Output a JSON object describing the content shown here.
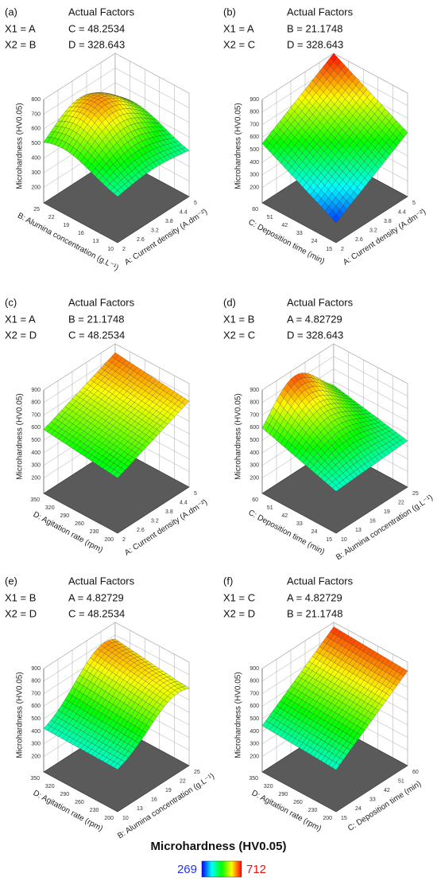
{
  "panels": [
    {
      "label": "(a)",
      "heading": "Actual Factors",
      "x1": "X1 = A",
      "x2": "X2 = B",
      "f1": "C = 48.2534",
      "f2": "D = 328.643",
      "z_label": "Microhardness (HV0.05)",
      "x_label": "A: Current density (A.dm⁻²)",
      "y_label": "B: Alumina concentration (g.L⁻¹)",
      "z_ticks": [
        200,
        300,
        400,
        500,
        600,
        700,
        800
      ],
      "x_ticks": [
        2,
        2.6,
        3.2,
        3.8,
        4.4,
        5
      ],
      "y_ticks": [
        10,
        13,
        16,
        19,
        22,
        25
      ]
    },
    {
      "label": "(b)",
      "heading": "Actual Factors",
      "x1": "X1 = A",
      "x2": "X2 = C",
      "f1": "B = 21.1748",
      "f2": "D = 328.643",
      "z_label": "Microhardness (HV0.05)",
      "x_label": "A: Current density (A.dm⁻²)",
      "y_label": "C: Deposition time (min)",
      "z_ticks": [
        200,
        300,
        400,
        500,
        600,
        700,
        800,
        900
      ],
      "x_ticks": [
        2,
        2.6,
        3.2,
        3.8,
        4.4,
        5
      ],
      "y_ticks": [
        15,
        24,
        33,
        42,
        51,
        60
      ]
    },
    {
      "label": "(c)",
      "heading": "Actual Factors",
      "x1": "X1 = A",
      "x2": "X2 = D",
      "f1": "B = 21.1748",
      "f2": "C = 48.2534",
      "z_label": "Microhardness (HV0.05)",
      "x_label": "A: Current density (A.dm⁻²)",
      "y_label": "D: Agitation rate (rpm)",
      "z_ticks": [
        200,
        300,
        400,
        500,
        600,
        700,
        800,
        900
      ],
      "x_ticks": [
        2,
        2.6,
        3.2,
        3.8,
        4.4,
        5
      ],
      "y_ticks": [
        200,
        230,
        260,
        290,
        320,
        350
      ]
    },
    {
      "label": "(d)",
      "heading": "Actual Factors",
      "x1": "X1 = B",
      "x2": "X2 = C",
      "f1": "A = 4.82729",
      "f2": "D = 328.643",
      "z_label": "Microhardness (HV0.05)",
      "x_label": "B: Alumina concentration (g.L⁻¹)",
      "y_label": "C: Deposition time (min)",
      "z_ticks": [
        200,
        300,
        400,
        500,
        600,
        700,
        800,
        900
      ],
      "x_ticks": [
        10,
        13,
        16,
        19,
        22,
        25
      ],
      "y_ticks": [
        15,
        24,
        33,
        42,
        51,
        60
      ]
    },
    {
      "label": "(e)",
      "heading": "Actual Factors",
      "x1": "X1 = B",
      "x2": "X2 = D",
      "f1": "A = 4.82729",
      "f2": "C = 48.2534",
      "z_label": "Microhardness (HV0.05)",
      "x_label": "B: Alumina concentration (g.L⁻¹)",
      "y_label": "D: Agitation rate (rpm)",
      "z_ticks": [
        200,
        300,
        400,
        500,
        600,
        700,
        800,
        900
      ],
      "x_ticks": [
        10,
        13,
        16,
        19,
        22,
        25
      ],
      "y_ticks": [
        200,
        230,
        260,
        290,
        320,
        350
      ]
    },
    {
      "label": "(f)",
      "heading": "Actual Factors",
      "x1": "X1 = C",
      "x2": "X2 = D",
      "f1": "A = 4.82729",
      "f2": "B = 21.1748",
      "z_label": "Microhardness (HV0.05)",
      "x_label": "C: Deposition time (min)",
      "y_label": "D: Agitation rate (rpm)",
      "z_ticks": [
        200,
        300,
        400,
        500,
        600,
        700,
        800,
        900
      ],
      "x_ticks": [
        15,
        24,
        33,
        42,
        51,
        60
      ],
      "y_ticks": [
        200,
        230,
        260,
        290,
        320,
        350
      ]
    }
  ],
  "legend": {
    "title": "Microhardness  (HV0.05)",
    "min": 269,
    "max": 712
  }
}
